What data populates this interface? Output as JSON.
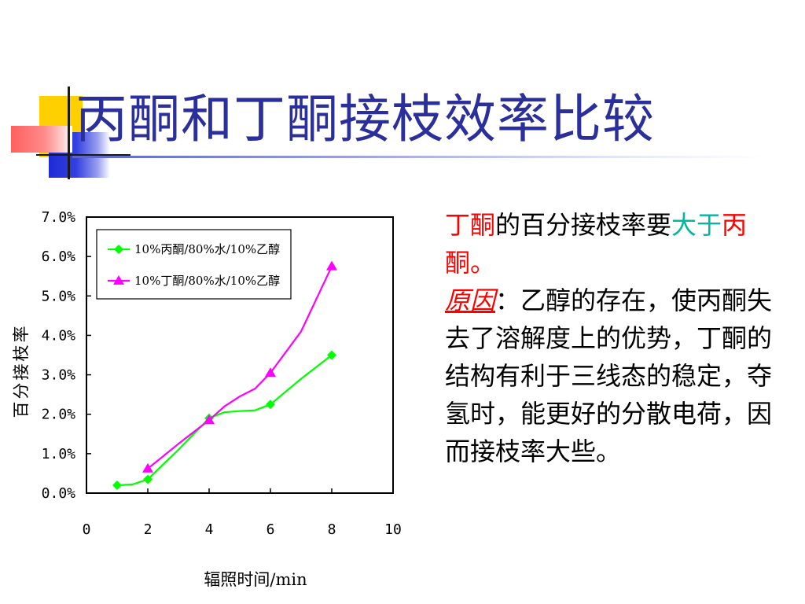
{
  "slide": {
    "title": "丙酮和丁酮接枝效率比较"
  },
  "explanation": {
    "part1_red": "丁酮",
    "part2": "的百分接枝率要",
    "part3_teal": "大于",
    "part4_red": "丙酮。",
    "reason_label": "原因",
    "reason_colon": "：",
    "reason_text": "乙醇的存在，使丙酮失去了溶解度上的优势，丁酮的结构有利于三线态的稳定，夺氢时，能更好的分散电荷，因而接枝率大些。"
  },
  "chart_data": {
    "type": "line",
    "title": "",
    "xlabel": "辐照时间/min",
    "ylabel": "百分接枝率",
    "xlim": [
      0,
      10
    ],
    "ylim": [
      0,
      0.07
    ],
    "x_ticks": [
      "0",
      "2",
      "4",
      "6",
      "8",
      "10"
    ],
    "y_ticks": [
      "0.0%",
      "1.0%",
      "2.0%",
      "3.0%",
      "4.0%",
      "5.0%",
      "6.0%",
      "7.0%"
    ],
    "legend_position": "top-left",
    "series": [
      {
        "name": "10%丙酮/80%水/10%乙醇",
        "color": "#00ff00",
        "marker": "diamond",
        "x": [
          1,
          2,
          4,
          6,
          8
        ],
        "y": [
          0.002,
          0.0035,
          0.019,
          0.0225,
          0.035
        ],
        "curve_x": [
          1,
          1.5,
          2,
          3,
          4,
          4.5,
          5,
          5.5,
          6,
          7,
          8
        ],
        "curve_y": [
          0.002,
          0.0022,
          0.0035,
          0.011,
          0.019,
          0.0205,
          0.0208,
          0.021,
          0.0225,
          0.029,
          0.035
        ]
      },
      {
        "name": "10%丁酮/80%水/10%乙醇",
        "color": "#ff00ff",
        "marker": "triangle",
        "x": [
          2,
          4,
          6,
          8
        ],
        "y": [
          0.0062,
          0.0185,
          0.0305,
          0.0575
        ],
        "curve_x": [
          2,
          3,
          4,
          4.5,
          5,
          5.5,
          6,
          7,
          8
        ],
        "curve_y": [
          0.0062,
          0.0125,
          0.0185,
          0.022,
          0.0245,
          0.0265,
          0.0305,
          0.041,
          0.0575
        ]
      }
    ]
  }
}
